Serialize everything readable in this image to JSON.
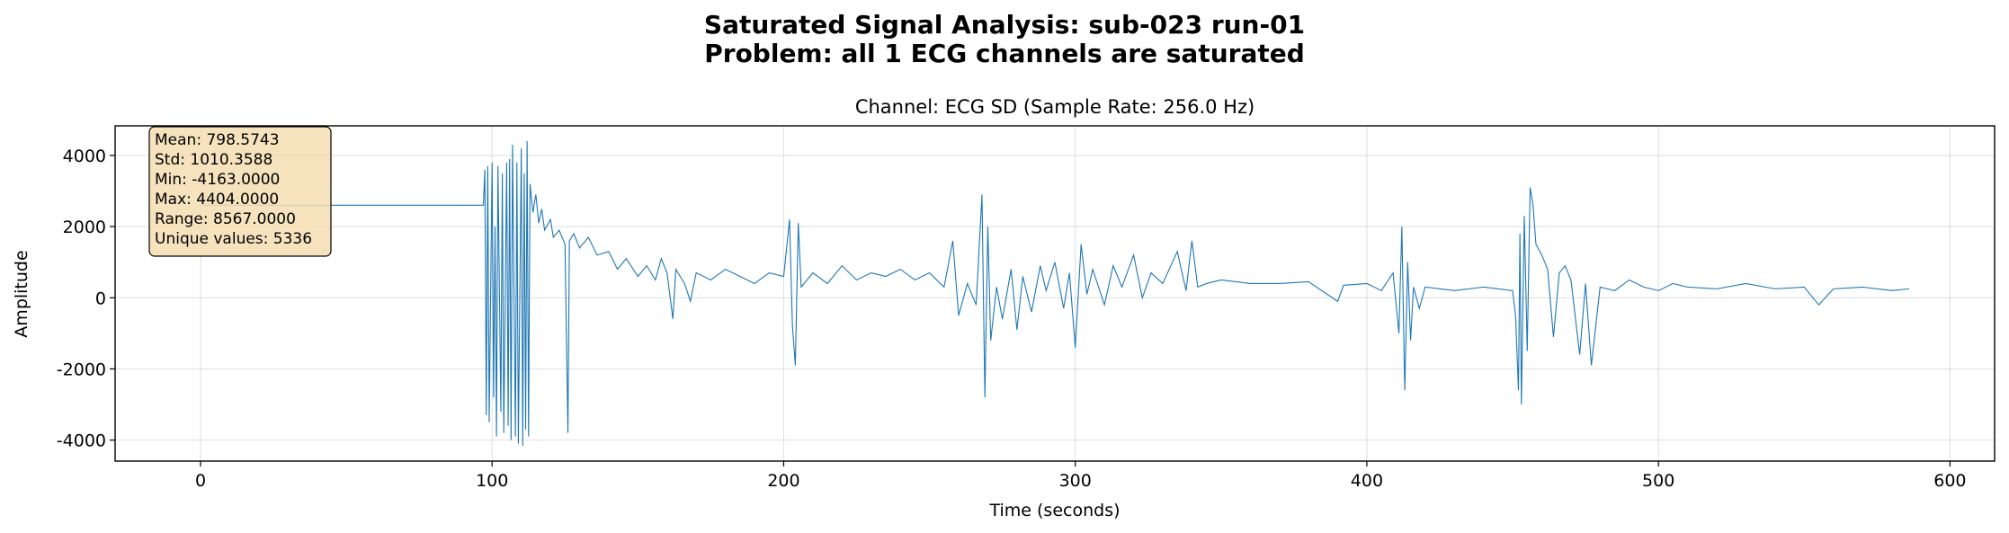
{
  "chart_data": {
    "type": "line",
    "title": "Saturated Signal Analysis: sub-023 run-01",
    "subtitle": "Problem: all 1 ECG channels are saturated",
    "axes_title": "Channel: ECG SD (Sample Rate: 256.0 Hz)",
    "xlabel": "Time (seconds)",
    "ylabel": "Amplitude",
    "annotation": [
      "Mean: 798.5743",
      "Std: 1010.3588",
      "Min: -4163.0000",
      "Max: 4404.0000",
      "Range: 8567.0000",
      "Unique values: 5336"
    ],
    "xlim": [
      -29.3,
      615.3
    ],
    "ylim": [
      -4591,
      4832
    ],
    "xticks": [
      0,
      100,
      200,
      300,
      400,
      500,
      600
    ],
    "yticks": [
      -4000,
      -2000,
      0,
      2000,
      4000
    ],
    "grid": true,
    "series": [
      {
        "color": "#1f77b4",
        "x": [
          0,
          97,
          97.5,
          98,
          98.5,
          99,
          100,
          100.5,
          101,
          101.5,
          102,
          103,
          103.5,
          104,
          105,
          105.5,
          106,
          106.5,
          107,
          108,
          108.5,
          109,
          110,
          110.5,
          111,
          111.5,
          112,
          112.5,
          113,
          114,
          115,
          116,
          117,
          118,
          120,
          121,
          123,
          125,
          126,
          126.5,
          128,
          130,
          133,
          136,
          140,
          143,
          146,
          150,
          153,
          156,
          158,
          160,
          162,
          163,
          166,
          168,
          170,
          175,
          180,
          185,
          190,
          195,
          200,
          202,
          203,
          204,
          205,
          206,
          210,
          215,
          220,
          225,
          230,
          235,
          240,
          245,
          250,
          255,
          258,
          260,
          263,
          266,
          268,
          269,
          270,
          271,
          273,
          275,
          278,
          280,
          282,
          285,
          288,
          290,
          293,
          296,
          298,
          300,
          302,
          304,
          306,
          310,
          313,
          316,
          320,
          323,
          326,
          330,
          335,
          338,
          340,
          342,
          345,
          350,
          360,
          370,
          380,
          390,
          392,
          400,
          405,
          409,
          411,
          412,
          413,
          414,
          415,
          416,
          418,
          420,
          430,
          440,
          450,
          451,
          452,
          452.5,
          453,
          454,
          455,
          456,
          457,
          458,
          460,
          462,
          464,
          466,
          468,
          470,
          473,
          475,
          477,
          480,
          485,
          490,
          495,
          500,
          505,
          510,
          520,
          530,
          540,
          550,
          555,
          560,
          570,
          580,
          586
        ],
        "values": [
          2600,
          2600,
          3600,
          -3300,
          3700,
          -3500,
          3800,
          -2800,
          2000,
          -3900,
          3700,
          -3200,
          3500,
          -3800,
          3800,
          -3600,
          3900,
          -4000,
          4300,
          -3900,
          3800,
          -4100,
          4200,
          -4163,
          3500,
          -3700,
          4404,
          -3900,
          3200,
          2400,
          2900,
          2100,
          2500,
          1900,
          2200,
          1700,
          1900,
          1500,
          -3800,
          1600,
          1800,
          1400,
          1700,
          1200,
          1300,
          800,
          1100,
          600,
          900,
          500,
          1100,
          700,
          -600,
          800,
          400,
          -100,
          700,
          500,
          800,
          600,
          400,
          700,
          600,
          2200,
          -800,
          -1900,
          2100,
          300,
          700,
          400,
          900,
          500,
          700,
          600,
          800,
          500,
          700,
          300,
          1600,
          -500,
          400,
          -200,
          2900,
          -2800,
          2000,
          -1200,
          300,
          -600,
          800,
          -900,
          600,
          -400,
          900,
          200,
          1000,
          -300,
          700,
          -1400,
          1500,
          100,
          800,
          -200,
          900,
          300,
          1200,
          0,
          700,
          400,
          1300,
          200,
          1600,
          300,
          400,
          500,
          400,
          400,
          450,
          -100,
          350,
          400,
          200,
          700,
          -1000,
          2000,
          -2600,
          1000,
          -1200,
          300,
          -300,
          300,
          200,
          300,
          200,
          -500,
          -2600,
          1800,
          -3000,
          2300,
          -1500,
          3100,
          2600,
          1500,
          1200,
          800,
          -1100,
          700,
          900,
          500,
          -1600,
          400,
          -1900,
          300,
          200,
          500,
          300,
          200,
          400,
          300,
          250,
          400,
          250,
          300,
          -200,
          250,
          300,
          200,
          250
        ]
      }
    ]
  }
}
